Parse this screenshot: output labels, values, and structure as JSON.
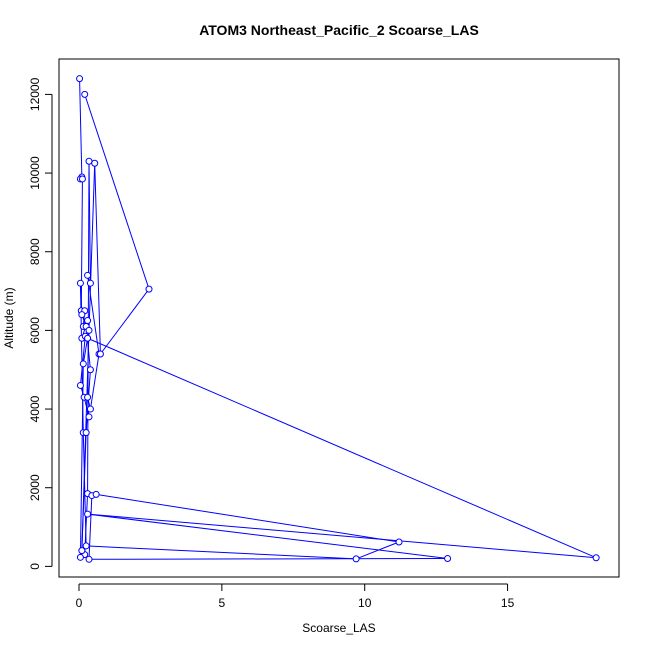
{
  "chart_data": {
    "type": "line",
    "title": "ATOM3 Northeast_Pacific_2 Scoarse_LAS",
    "xlabel": "Scoarse_LAS",
    "ylabel": "Altitude (m)",
    "xlim": [
      -0.7,
      18.9
    ],
    "ylim": [
      -270,
      12900
    ],
    "x_ticks": [
      0,
      5,
      10,
      15
    ],
    "y_ticks": [
      0,
      2000,
      4000,
      6000,
      8000,
      10000,
      12000
    ],
    "x_tick_labels": [
      "0",
      "5",
      "10",
      "15"
    ],
    "y_tick_labels": [
      "0",
      "2000",
      "4000",
      "6000",
      "8000",
      "10000",
      "12000"
    ],
    "grid": false,
    "legend": "none",
    "markers": "open-circle",
    "colors": {
      "series": "#0000ff",
      "frame": "#000000"
    },
    "series": [
      {
        "x": [
          0.02,
          0.1,
          0.05,
          0.12,
          0.08,
          0.2,
          0.15,
          0.3,
          0.1,
          0.22,
          0.05,
          0.18,
          0.35,
          0.3,
          0.4,
          0.7,
          0.3,
          0.4,
          0.35,
          0.3,
          0.2,
          0.05,
          0.15,
          0.3,
          18.1,
          0.3,
          12.9,
          0.35,
          0.45,
          0.6,
          11.2,
          9.7,
          0.25,
          0.15,
          0.05,
          0.1,
          0.25,
          0.4,
          0.25,
          0.1,
          0.35,
          0.55,
          0.75,
          2.45,
          0.2
        ],
        "y": [
          12400,
          9900,
          9850,
          9850,
          6500,
          6500,
          6100,
          6250,
          5800,
          5850,
          4600,
          4300,
          3800,
          4300,
          4000,
          5400,
          7400,
          7200,
          10300,
          1850,
          300,
          230,
          5150,
          5800,
          220,
          1330,
          200,
          180,
          1800,
          1830,
          620,
          190,
          520,
          3400,
          7200,
          6400,
          6100,
          5000,
          3400,
          400,
          6000,
          10250,
          5400,
          7050,
          12000
        ]
      }
    ]
  }
}
